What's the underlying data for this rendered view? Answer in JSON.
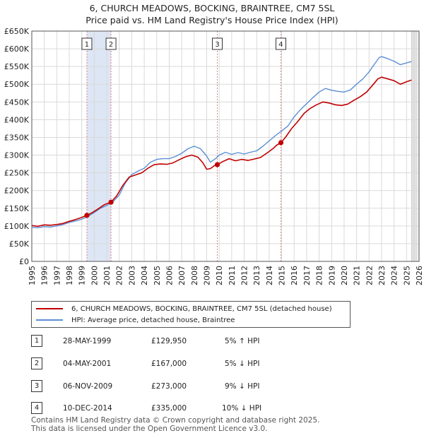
{
  "title_line1": "6, CHURCH MEADOWS, BOCKING, BRAINTREE, CM7 5SL",
  "title_line2": "Price paid vs. HM Land Registry's House Price Index (HPI)",
  "chart_data": {
    "type": "line",
    "xlim": [
      1995,
      2026
    ],
    "ylim": [
      0,
      650000
    ],
    "y_ticks": [
      0,
      50000,
      100000,
      150000,
      200000,
      250000,
      300000,
      350000,
      400000,
      450000,
      500000,
      550000,
      600000,
      650000
    ],
    "y_tick_labels": [
      "£0",
      "£50K",
      "£100K",
      "£150K",
      "£200K",
      "£250K",
      "£300K",
      "£350K",
      "£400K",
      "£450K",
      "£500K",
      "£550K",
      "£600K",
      "£650K"
    ],
    "x_ticks": [
      1995,
      1996,
      1997,
      1998,
      1999,
      2000,
      2001,
      2002,
      2003,
      2004,
      2005,
      2006,
      2007,
      2008,
      2009,
      2010,
      2011,
      2012,
      2013,
      2014,
      2015,
      2016,
      2017,
      2018,
      2019,
      2020,
      2021,
      2022,
      2023,
      2024,
      2025,
      2026
    ],
    "grid": true,
    "colors": {
      "price": "#c00000",
      "hpi": "#5b8fd4",
      "sale_band": "#dde6f5",
      "marker_line": "#e08080"
    },
    "series": [
      {
        "name": "6, CHURCH MEADOWS, BOCKING, BRAINTREE, CM7 5SL (detached house)",
        "x": [
          1995.0,
          1995.5,
          1996.0,
          1996.5,
          1997.0,
          1997.5,
          1998.0,
          1998.5,
          1999.0,
          1999.41,
          1999.8,
          2000.3,
          2000.8,
          2001.34,
          2001.8,
          2002.3,
          2002.8,
          2003.3,
          2003.8,
          2004.3,
          2004.8,
          2005.3,
          2005.8,
          2006.3,
          2006.8,
          2007.3,
          2007.8,
          2008.3,
          2008.7,
          2009.0,
          2009.3,
          2009.6,
          2009.85,
          2010.3,
          2010.8,
          2011.3,
          2011.8,
          2012.3,
          2012.8,
          2013.3,
          2013.8,
          2014.3,
          2014.6,
          2014.94,
          2015.3,
          2015.8,
          2016.3,
          2016.8,
          2017.3,
          2017.8,
          2018.3,
          2018.8,
          2019.3,
          2019.8,
          2020.3,
          2020.8,
          2021.3,
          2021.8,
          2022.3,
          2022.7,
          2023.0,
          2023.5,
          2024.0,
          2024.5,
          2025.0,
          2025.4
        ],
        "values": [
          101000,
          99000,
          103000,
          102000,
          104000,
          107000,
          113000,
          118000,
          124000,
          129950,
          137000,
          148000,
          160000,
          167000,
          185000,
          215000,
          238000,
          244000,
          250000,
          263000,
          273000,
          275000,
          274000,
          278000,
          287000,
          295000,
          300000,
          294000,
          278000,
          260000,
          262000,
          270000,
          273000,
          282000,
          290000,
          284000,
          288000,
          285000,
          289000,
          293000,
          305000,
          318000,
          328000,
          335000,
          350000,
          375000,
          395000,
          418000,
          432000,
          442000,
          450000,
          447000,
          442000,
          440000,
          444000,
          455000,
          465000,
          478000,
          498000,
          515000,
          520000,
          515000,
          510000,
          500000,
          507000,
          512000
        ]
      },
      {
        "name": "HPI: Average price, detached house, Braintree",
        "x": [
          1995.0,
          1995.5,
          1996.0,
          1996.5,
          1997.0,
          1997.5,
          1998.0,
          1998.5,
          1999.0,
          1999.5,
          2000.0,
          2000.5,
          2001.0,
          2001.5,
          2002.0,
          2002.5,
          2003.0,
          2003.5,
          2004.0,
          2004.5,
          2005.0,
          2005.5,
          2006.0,
          2006.5,
          2007.0,
          2007.5,
          2008.0,
          2008.5,
          2009.0,
          2009.3,
          2009.7,
          2010.0,
          2010.5,
          2011.0,
          2011.5,
          2012.0,
          2012.5,
          2013.0,
          2013.5,
          2014.0,
          2014.5,
          2015.0,
          2015.5,
          2016.0,
          2016.5,
          2017.0,
          2017.5,
          2018.0,
          2018.5,
          2019.0,
          2019.5,
          2020.0,
          2020.5,
          2021.0,
          2021.5,
          2022.0,
          2022.5,
          2022.8,
          2023.0,
          2023.5,
          2024.0,
          2024.5,
          2025.0,
          2025.4
        ],
        "values": [
          96000,
          95000,
          98000,
          97000,
          100000,
          104000,
          110000,
          114000,
          119000,
          127000,
          138000,
          150000,
          158000,
          168000,
          187000,
          222000,
          245000,
          255000,
          263000,
          280000,
          288000,
          290000,
          290000,
          296000,
          305000,
          318000,
          325000,
          318000,
          297000,
          280000,
          290000,
          300000,
          308000,
          302000,
          307000,
          303000,
          308000,
          312000,
          325000,
          340000,
          355000,
          368000,
          382000,
          408000,
          428000,
          445000,
          462000,
          478000,
          488000,
          483000,
          480000,
          478000,
          484000,
          500000,
          515000,
          535000,
          560000,
          575000,
          578000,
          572000,
          565000,
          555000,
          560000,
          564000
        ]
      }
    ],
    "sale_markers": [
      {
        "label": "1",
        "x": 1999.41,
        "value": 129950
      },
      {
        "label": "2",
        "x": 2001.34,
        "value": 167000
      },
      {
        "label": "3",
        "x": 2009.85,
        "value": 273000
      },
      {
        "label": "4",
        "x": 2014.94,
        "value": 335000
      }
    ],
    "shaded_bands": [
      [
        1999.41,
        2001.34
      ]
    ],
    "future_start": 2025.4
  },
  "legend": {
    "price_label": "6, CHURCH MEADOWS, BOCKING, BRAINTREE, CM7 5SL (detached house)",
    "hpi_label": "HPI: Average price, detached house, Braintree"
  },
  "sales": [
    {
      "num": "1",
      "date": "28-MAY-1999",
      "price": "£129,950",
      "hpi": "5% ↑ HPI"
    },
    {
      "num": "2",
      "date": "04-MAY-2001",
      "price": "£167,000",
      "hpi": "5% ↓ HPI"
    },
    {
      "num": "3",
      "date": "06-NOV-2009",
      "price": "£273,000",
      "hpi": "9% ↓ HPI"
    },
    {
      "num": "4",
      "date": "10-DEC-2014",
      "price": "£335,000",
      "hpi": "10% ↓ HPI"
    }
  ],
  "footer_line1": "Contains HM Land Registry data © Crown copyright and database right 2025.",
  "footer_line2": "This data is licensed under the Open Government Licence v3.0."
}
